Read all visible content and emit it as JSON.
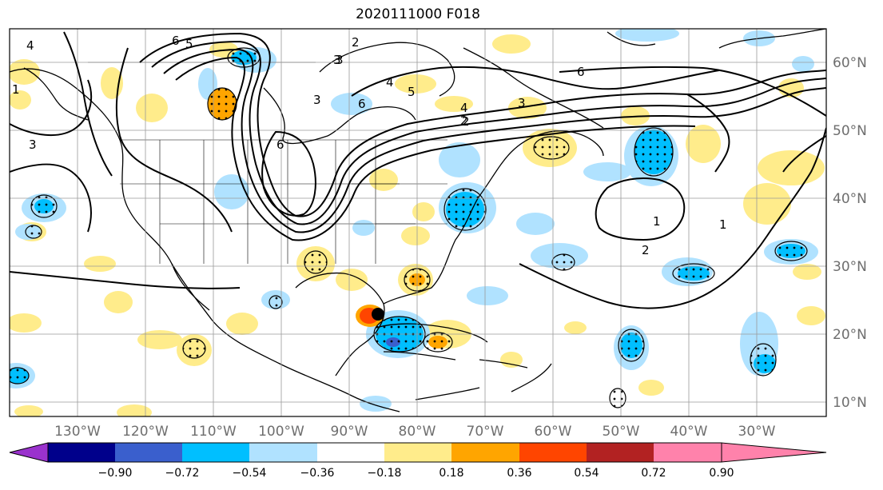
{
  "title": "2020111000 F018",
  "map": {
    "lon_labels": [
      "130°W",
      "120°W",
      "110°W",
      "100°W",
      "90°W",
      "80°W",
      "70°W",
      "60°W",
      "50°W",
      "40°W",
      "30°W"
    ],
    "lat_labels": [
      "60°N",
      "50°N",
      "40°N",
      "30°N",
      "20°N",
      "10°N"
    ],
    "contour_labels": [
      "6",
      "5",
      "4",
      "3",
      "2",
      "1",
      "3",
      "2",
      "3",
      "4",
      "5",
      "6",
      "6",
      "4",
      "3",
      "2",
      "6",
      "1",
      "2",
      "1",
      "3"
    ]
  },
  "colorbar": {
    "colors": [
      "#9a32cd",
      "#00008b",
      "#3a5fcd",
      "#00bfff",
      "#b0e2ff",
      "#ffffff",
      "#ffec8b",
      "#ffa500",
      "#ff4500",
      "#b22222",
      "#ff82ab"
    ],
    "ticks": [
      "−0.90",
      "−0.72",
      "−0.54",
      "−0.36",
      "−0.18",
      "0.18",
      "0.36",
      "0.54",
      "0.72",
      "0.90"
    ]
  }
}
